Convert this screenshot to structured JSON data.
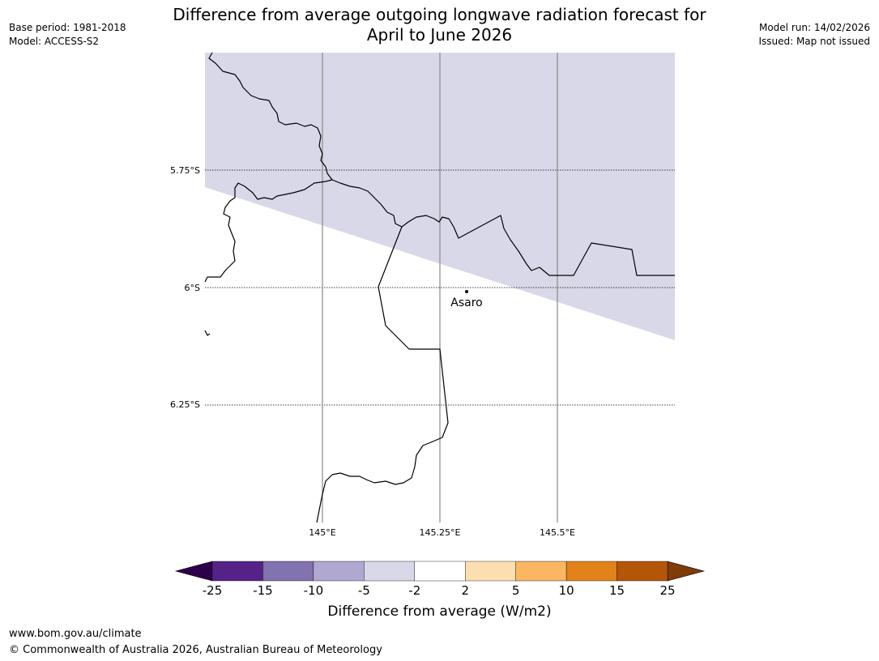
{
  "header": {
    "title_line1": "Difference from average outgoing longwave radiation forecast for",
    "title_line2": "April to June 2026",
    "base_period": "Base period: 1981-2018",
    "model": "Model: ACCESS-S2",
    "model_run": "Model run: 14/02/2026",
    "issued": "Issued: Map not issued"
  },
  "map": {
    "lat_labels": [
      "5.75°S",
      "6°S",
      "6.25°S"
    ],
    "lon_labels": [
      "145°E",
      "145.25°E",
      "145.5°E"
    ],
    "place": {
      "name": "Asaro",
      "lon": 145.3,
      "lat": -6.02
    },
    "shaded_category": "-5 to -2",
    "shaded_color": "#d8d8e9",
    "background_category": "-2 to 2"
  },
  "colorbar": {
    "label": "Difference from average (W/m2)",
    "ticks": [
      "-25",
      "-15",
      "-10",
      "-5",
      "-2",
      "2",
      "5",
      "10",
      "15",
      "25"
    ],
    "colors": [
      "#562287",
      "#8272b0",
      "#b0a8d1",
      "#d8d8e9",
      "#ffffff",
      "#fddeb1",
      "#fbb662",
      "#e1821b",
      "#b35608"
    ],
    "low_extend_color": "#2d004b",
    "high_extend_color": "#7f3b08"
  },
  "footer": {
    "url": "www.bom.gov.au/climate",
    "copyright": "© Commonwealth of Australia 2026, Australian Bureau of Meteorology"
  }
}
